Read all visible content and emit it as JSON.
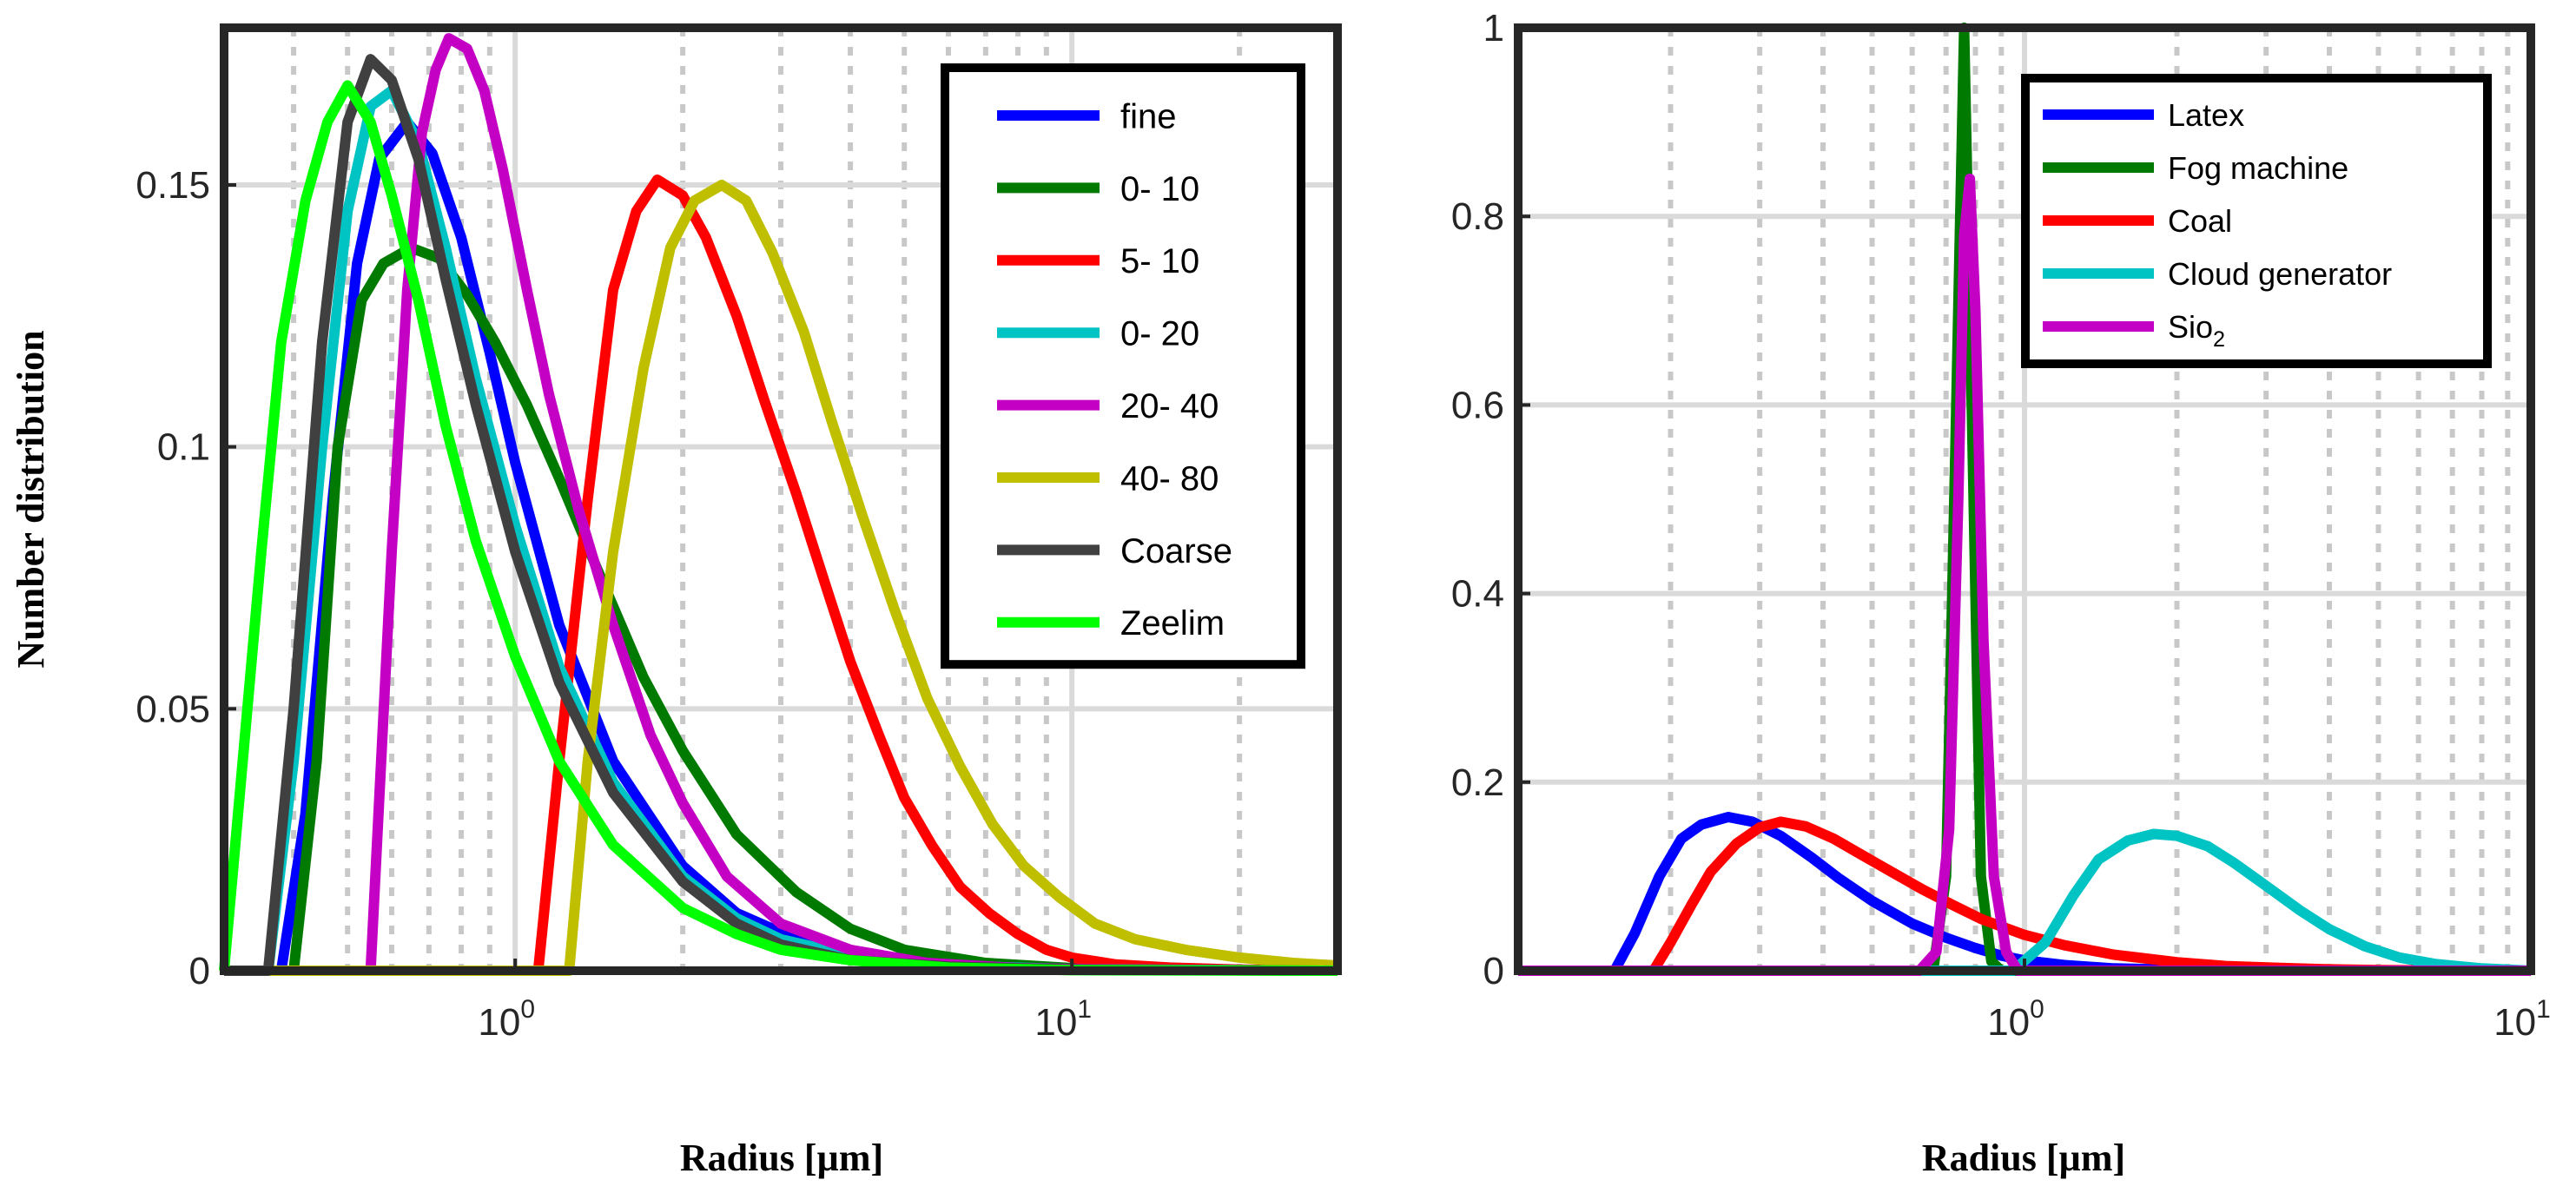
{
  "chart_data": [
    {
      "type": "line",
      "xscale": "log",
      "xlim": [
        0.3,
        30
      ],
      "ylim": [
        0,
        0.18
      ],
      "xlabel": "Radius [µm]",
      "ylabel": "Number distribution",
      "yticks": [
        {
          "v": 0,
          "label": "0"
        },
        {
          "v": 0.05,
          "label": "0.05"
        },
        {
          "v": 0.1,
          "label": "0.1"
        },
        {
          "v": 0.15,
          "label": "0.15"
        }
      ],
      "xticks": [
        {
          "v": 1,
          "base": "10",
          "exp": "0"
        },
        {
          "v": 10,
          "base": "10",
          "exp": "1"
        }
      ],
      "grid": true,
      "legend": "top-right",
      "series": [
        {
          "name": "fine",
          "color": "#0000ff",
          "x": [
            0.3,
            0.38,
            0.42,
            0.47,
            0.52,
            0.57,
            0.64,
            0.71,
            0.8,
            0.9,
            1.0,
            1.2,
            1.5,
            2.0,
            2.5,
            3.2,
            4.0,
            6.0,
            10.0,
            30.0
          ],
          "y": [
            0,
            0,
            0.03,
            0.09,
            0.135,
            0.155,
            0.162,
            0.156,
            0.14,
            0.118,
            0.097,
            0.066,
            0.04,
            0.02,
            0.011,
            0.006,
            0.003,
            0.0012,
            0.0003,
            0
          ]
        },
        {
          "name": "0- 10",
          "color": "#007a00",
          "x": [
            0.3,
            0.4,
            0.44,
            0.48,
            0.53,
            0.58,
            0.65,
            0.73,
            0.82,
            0.92,
            1.05,
            1.2,
            1.4,
            1.7,
            2.0,
            2.5,
            3.2,
            4.0,
            5.0,
            7.0,
            10.0,
            30.0
          ],
          "y": [
            0,
            0,
            0.04,
            0.1,
            0.128,
            0.135,
            0.138,
            0.136,
            0.129,
            0.12,
            0.108,
            0.094,
            0.077,
            0.056,
            0.042,
            0.026,
            0.015,
            0.008,
            0.004,
            0.0015,
            0.0005,
            0
          ]
        },
        {
          "name": "5- 10",
          "color": "#ff0000",
          "x": [
            0.3,
            1.1,
            1.2,
            1.35,
            1.5,
            1.65,
            1.8,
            2.0,
            2.2,
            2.5,
            2.8,
            3.2,
            3.6,
            4.0,
            4.5,
            5.0,
            5.6,
            6.3,
            7.1,
            8.0,
            9.0,
            10.0,
            12.0,
            15.0,
            20.0,
            30.0
          ],
          "y": [
            0,
            0,
            0.04,
            0.09,
            0.13,
            0.145,
            0.151,
            0.148,
            0.14,
            0.125,
            0.109,
            0.091,
            0.074,
            0.059,
            0.045,
            0.033,
            0.024,
            0.016,
            0.011,
            0.007,
            0.004,
            0.0025,
            0.0012,
            0.0006,
            0.0002,
            0
          ]
        },
        {
          "name": "0- 20",
          "color": "#00c4c4",
          "x": [
            0.3,
            0.36,
            0.4,
            0.45,
            0.5,
            0.55,
            0.6,
            0.67,
            0.75,
            0.85,
            1.0,
            1.2,
            1.5,
            2.0,
            2.5,
            3.0,
            4.0,
            6.0,
            10.0,
            30.0
          ],
          "y": [
            0,
            0,
            0.04,
            0.1,
            0.145,
            0.165,
            0.168,
            0.158,
            0.138,
            0.113,
            0.085,
            0.058,
            0.036,
            0.018,
            0.01,
            0.006,
            0.003,
            0.001,
            0.0003,
            0
          ]
        },
        {
          "name": "20- 40",
          "color": "#c400c4",
          "x": [
            0.3,
            0.55,
            0.6,
            0.64,
            0.68,
            0.72,
            0.76,
            0.82,
            0.88,
            0.95,
            1.05,
            1.15,
            1.3,
            1.5,
            1.75,
            2.0,
            2.4,
            3.0,
            4.0,
            5.5,
            8.0,
            12.0,
            30.0
          ],
          "y": [
            0,
            0,
            0.08,
            0.13,
            0.16,
            0.172,
            0.178,
            0.176,
            0.168,
            0.153,
            0.13,
            0.11,
            0.088,
            0.066,
            0.045,
            0.032,
            0.018,
            0.009,
            0.004,
            0.0015,
            0.0005,
            0.0002,
            0
          ]
        },
        {
          "name": "40- 80",
          "color": "#bfbf00",
          "x": [
            0.3,
            0.5,
            1.25,
            1.35,
            1.5,
            1.7,
            1.9,
            2.1,
            2.35,
            2.6,
            2.9,
            3.3,
            3.7,
            4.2,
            4.8,
            5.5,
            6.3,
            7.2,
            8.2,
            9.5,
            11.0,
            13.0,
            16.0,
            20.0,
            25.0,
            30.0
          ],
          "y": [
            0,
            0,
            0,
            0.04,
            0.08,
            0.115,
            0.138,
            0.147,
            0.15,
            0.147,
            0.137,
            0.122,
            0.105,
            0.087,
            0.069,
            0.052,
            0.039,
            0.028,
            0.02,
            0.014,
            0.009,
            0.006,
            0.004,
            0.0025,
            0.0015,
            0.001
          ]
        },
        {
          "name": "Coarse",
          "color": "#404040",
          "x": [
            0.3,
            0.36,
            0.4,
            0.45,
            0.5,
            0.55,
            0.6,
            0.67,
            0.75,
            0.85,
            1.0,
            1.2,
            1.5,
            2.0,
            2.5,
            3.0,
            4.0,
            6.0,
            10.0,
            30.0
          ],
          "y": [
            0,
            0,
            0.05,
            0.12,
            0.162,
            0.174,
            0.17,
            0.155,
            0.132,
            0.108,
            0.08,
            0.055,
            0.034,
            0.017,
            0.009,
            0.005,
            0.002,
            0.0008,
            0.0002,
            0
          ]
        },
        {
          "name": "Zeelim",
          "color": "#00ff00",
          "x": [
            0.3,
            0.35,
            0.38,
            0.42,
            0.46,
            0.5,
            0.55,
            0.6,
            0.67,
            0.75,
            0.85,
            1.0,
            1.2,
            1.5,
            2.0,
            2.5,
            3.0,
            4.0,
            6.0,
            10.0,
            30.0
          ],
          "y": [
            0,
            0.08,
            0.12,
            0.147,
            0.162,
            0.169,
            0.162,
            0.148,
            0.128,
            0.104,
            0.082,
            0.06,
            0.04,
            0.024,
            0.012,
            0.007,
            0.004,
            0.002,
            0.0006,
            0.0001,
            0
          ]
        }
      ]
    },
    {
      "type": "line",
      "xscale": "log",
      "xlim": [
        0.1,
        10
      ],
      "ylim": [
        0,
        1
      ],
      "xlabel": "Radius [µm]",
      "ylabel": "",
      "yticks": [
        {
          "v": 0,
          "label": "0"
        },
        {
          "v": 0.2,
          "label": "0.2"
        },
        {
          "v": 0.4,
          "label": "0.4"
        },
        {
          "v": 0.6,
          "label": "0.6"
        },
        {
          "v": 0.8,
          "label": "0.8"
        },
        {
          "v": 1,
          "label": "1"
        }
      ],
      "xticks": [
        {
          "v": 1,
          "base": "10",
          "exp": "0"
        },
        {
          "v": 10,
          "base": "10",
          "exp": "1"
        }
      ],
      "grid": true,
      "legend": "top-right",
      "series": [
        {
          "name": "Latex",
          "color": "#0000ff",
          "label": "Latex",
          "sub": "",
          "x": [
            0.1,
            0.155,
            0.17,
            0.19,
            0.21,
            0.23,
            0.26,
            0.29,
            0.33,
            0.38,
            0.43,
            0.5,
            0.6,
            0.7,
            0.8,
            0.9,
            1.0,
            1.2,
            1.5,
            2.0,
            3.0,
            10.0
          ],
          "y": [
            0,
            0,
            0.04,
            0.1,
            0.14,
            0.155,
            0.163,
            0.158,
            0.143,
            0.12,
            0.098,
            0.074,
            0.05,
            0.035,
            0.024,
            0.016,
            0.011,
            0.006,
            0.0025,
            0.001,
            0.0003,
            0
          ]
        },
        {
          "name": "Fog machine",
          "color": "#007a00",
          "label": "Fog machine",
          "sub": "",
          "x": [
            0.1,
            0.66,
            0.7,
            0.73,
            0.76,
            0.79,
            0.82,
            0.86,
            0.9,
            10.0
          ],
          "y": [
            0,
            0,
            0.1,
            0.55,
            1.0,
            0.55,
            0.1,
            0.01,
            0,
            0
          ]
        },
        {
          "name": "Coal",
          "color": "#ff0000",
          "label": "Coal",
          "sub": "",
          "x": [
            0.1,
            0.185,
            0.2,
            0.22,
            0.24,
            0.27,
            0.3,
            0.33,
            0.37,
            0.42,
            0.48,
            0.55,
            0.63,
            0.72,
            0.82,
            1.0,
            1.2,
            1.5,
            2.0,
            2.5,
            3.2,
            4.0,
            5.0,
            6.5,
            10.0
          ],
          "y": [
            0,
            0,
            0.03,
            0.07,
            0.105,
            0.135,
            0.152,
            0.158,
            0.153,
            0.14,
            0.122,
            0.104,
            0.086,
            0.07,
            0.055,
            0.038,
            0.027,
            0.017,
            0.009,
            0.005,
            0.003,
            0.0015,
            0.0007,
            0.0003,
            0
          ]
        },
        {
          "name": "Cloud generator",
          "color": "#00c4c4",
          "label": "Cloud generator",
          "sub": "",
          "x": [
            0.1,
            0.6,
            0.95,
            1.1,
            1.25,
            1.4,
            1.6,
            1.8,
            2.0,
            2.3,
            2.6,
            3.0,
            3.5,
            4.0,
            4.7,
            5.5,
            6.5,
            8.0,
            10.0
          ],
          "y": [
            0,
            0,
            0,
            0.03,
            0.08,
            0.118,
            0.138,
            0.145,
            0.143,
            0.132,
            0.114,
            0.09,
            0.064,
            0.044,
            0.026,
            0.014,
            0.007,
            0.0025,
            0
          ]
        },
        {
          "name": "Sio2",
          "color": "#c400c4",
          "label": "Sio",
          "sub": "2",
          "x": [
            0.1,
            0.62,
            0.67,
            0.71,
            0.74,
            0.76,
            0.78,
            0.8,
            0.83,
            0.87,
            0.92,
            0.97,
            10.0
          ],
          "y": [
            0,
            0,
            0.02,
            0.15,
            0.5,
            0.78,
            0.84,
            0.7,
            0.35,
            0.1,
            0.02,
            0,
            0
          ]
        }
      ]
    }
  ]
}
